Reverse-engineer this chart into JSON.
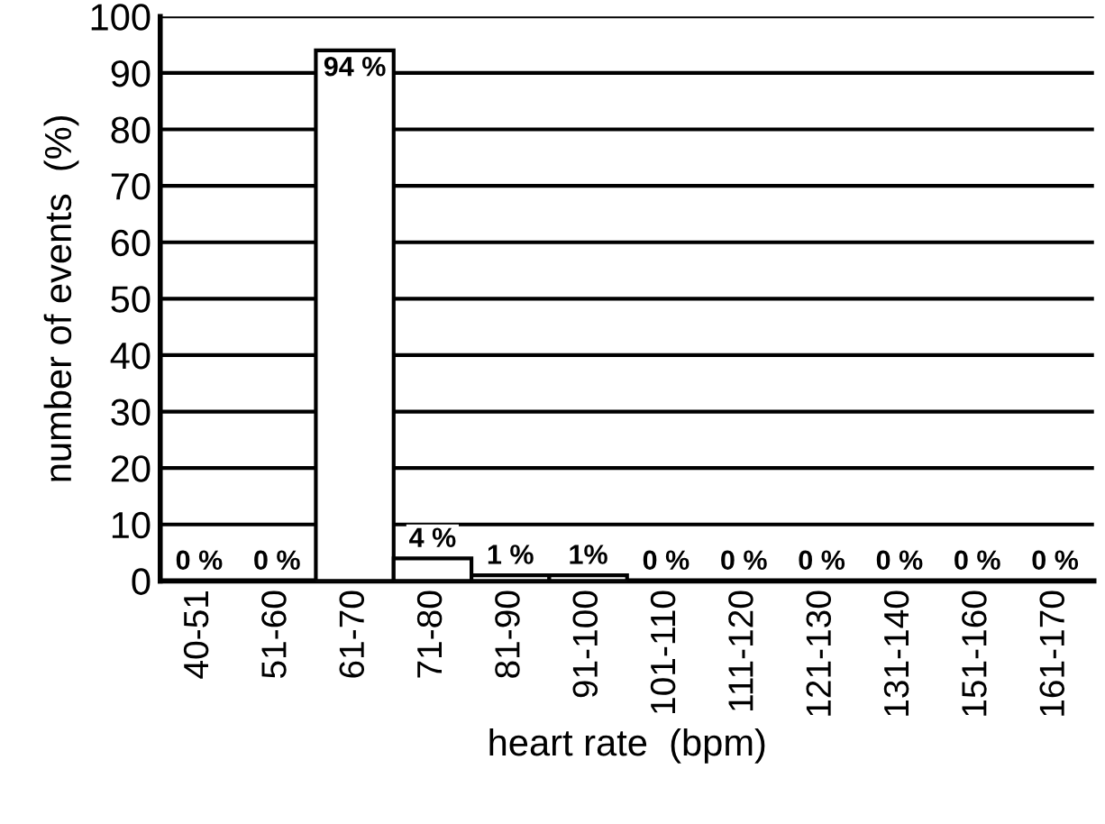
{
  "chart_data": {
    "type": "bar",
    "xlabel": "heart rate  (bpm)",
    "ylabel": "number of events  (%)",
    "categories": [
      "40-51",
      "51-60",
      "61-70",
      "71-80",
      "81-90",
      "91-100",
      "101-110",
      "111-120",
      "121-130",
      "131-140",
      "151-160",
      "161-170"
    ],
    "values": [
      0,
      0,
      94,
      4,
      1,
      1,
      0,
      0,
      0,
      0,
      0,
      0
    ],
    "value_labels": [
      "0 %",
      "0 %",
      "94 %",
      "4 %",
      "1 %",
      "1%",
      "0 %",
      "0 %",
      "0 %",
      "0 %",
      "0 %",
      "0 %"
    ],
    "color": "#ffffff",
    "ylim": [
      0,
      100
    ],
    "yticks": [
      0,
      10,
      20,
      30,
      40,
      50,
      60,
      70,
      80,
      90,
      100
    ],
    "grid": "y"
  }
}
